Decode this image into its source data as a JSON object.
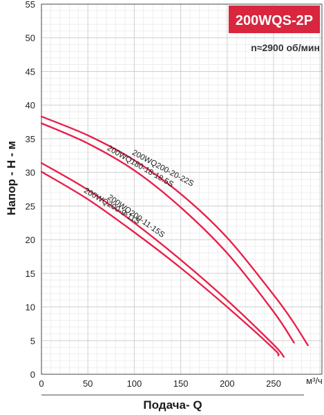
{
  "chart_data": {
    "type": "line",
    "title": "200WQS-2P",
    "subtitle": "n≈2900 об/мин",
    "xlabel": "Подача- Q",
    "ylabel": "Напор - H - м",
    "x_unit": "м³/ч",
    "xlim": [
      0,
      300
    ],
    "ylim": [
      0,
      55
    ],
    "x_ticks": [
      "0",
      "50",
      "100",
      "150",
      "200",
      "250"
    ],
    "y_ticks": [
      "0",
      "5",
      "10",
      "15",
      "20",
      "25",
      "30",
      "35",
      "40",
      "45",
      "50",
      "55"
    ],
    "grid": true,
    "colors": {
      "curve": "#e8204a",
      "title_bg": "#d9263f",
      "title_text": "#ffffff",
      "grid": "#cfcfcf",
      "grid_minor": "#e3e3e3"
    },
    "series": [
      {
        "name": "200WQ200-20-22S",
        "x": [
          0,
          50,
          100,
          150,
          200,
          250,
          270,
          287
        ],
        "y": [
          38.3,
          35.5,
          31.8,
          26.8,
          20.3,
          11.8,
          8.0,
          4.3
        ]
      },
      {
        "name": "200WQ180-18-18.5S",
        "x": [
          0,
          50,
          100,
          150,
          200,
          250,
          272
        ],
        "y": [
          37.3,
          34.3,
          30.3,
          24.8,
          18.0,
          9.3,
          4.7
        ]
      },
      {
        "name": "200WQ200-11-15S",
        "x": [
          0,
          50,
          100,
          150,
          200,
          250,
          261
        ],
        "y": [
          31.4,
          27.4,
          22.5,
          17.0,
          11.0,
          4.4,
          2.6
        ]
      },
      {
        "name": "200WQ200-9-11S",
        "x": [
          0,
          50,
          100,
          150,
          200,
          250,
          255
        ],
        "y": [
          30.1,
          26.0,
          21.1,
          15.8,
          10.0,
          3.8,
          2.8
        ]
      }
    ]
  }
}
